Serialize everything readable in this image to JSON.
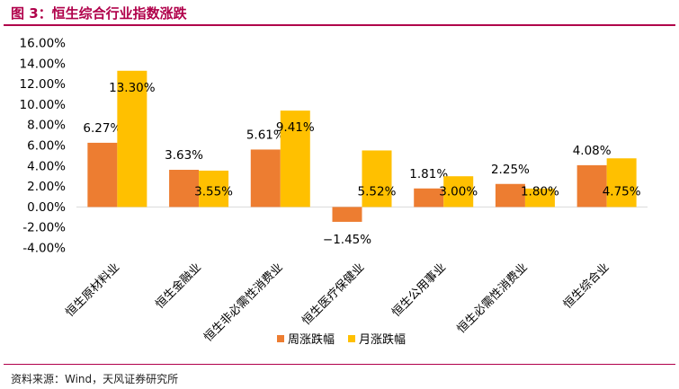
{
  "header": {
    "title": "图 3：恒生综合行业指数涨跌"
  },
  "source": {
    "text": "资料来源：Wind，天风证券研究所"
  },
  "colors": {
    "brand": "#b0004a",
    "weekly": "#ED7D31",
    "monthly": "#FFC000"
  },
  "chart_data": {
    "type": "bar",
    "categories": [
      "恒生原材料业",
      "恒生金融业",
      "恒生非必需性消费业",
      "恒生医疗保健业",
      "恒生公用事业",
      "恒生必需性消费业",
      "恒生综合业"
    ],
    "series": [
      {
        "name": "周涨跌幅",
        "values": [
          6.27,
          3.63,
          5.61,
          -1.45,
          1.81,
          2.25,
          4.08
        ],
        "labels": [
          "6.27%",
          "3.63%",
          "5.61%",
          "−1.45%",
          "1.81%",
          "2.25%",
          "4.08%"
        ]
      },
      {
        "name": "月涨跌幅",
        "values": [
          13.3,
          3.55,
          9.41,
          5.52,
          3.0,
          1.8,
          4.75
        ],
        "labels": [
          "13.30%",
          "3.55%",
          "9.41%",
          "5.52%",
          "3.00%",
          "1.80%",
          "4.75%"
        ]
      }
    ],
    "yticks": [
      "16.00%",
      "14.00%",
      "12.00%",
      "10.00%",
      "8.00%",
      "6.00%",
      "4.00%",
      "2.00%",
      "0.00%",
      "-2.00%",
      "-4.00%"
    ],
    "ylim": [
      -4,
      16
    ],
    "legend_position": "bottom",
    "grid": false
  }
}
